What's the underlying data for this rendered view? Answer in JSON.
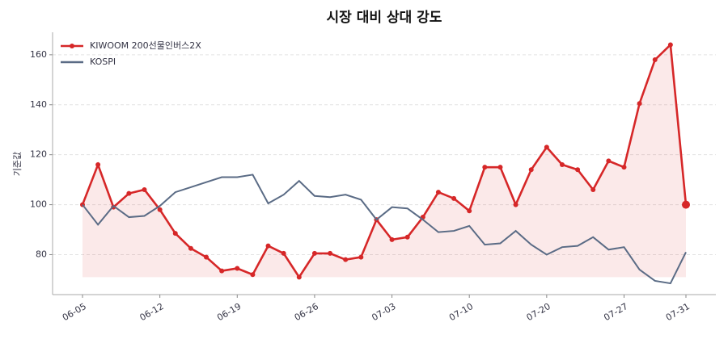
{
  "chart_data": {
    "type": "line",
    "title": "시장 대비 상대 강도",
    "y_label": "기준값",
    "categories": [
      "06-05",
      null,
      null,
      null,
      null,
      "06-12",
      null,
      null,
      null,
      null,
      "06-19",
      null,
      null,
      null,
      null,
      "06-26",
      null,
      null,
      null,
      null,
      "07-03",
      null,
      null,
      null,
      null,
      "07-10",
      null,
      null,
      null,
      null,
      "07-20",
      null,
      null,
      null,
      null,
      "07-27",
      null,
      null,
      null,
      "07-31"
    ],
    "ylim": [
      64,
      169
    ],
    "yticks": [
      80,
      100,
      120,
      140,
      160
    ],
    "grid": true,
    "legend": "upper left",
    "series": [
      {
        "name": "KIWOOM 200선물인버스2X",
        "color": "#d62728",
        "marker": true,
        "fill": true,
        "values": [
          100,
          116,
          99,
          104.5,
          106,
          98,
          88.5,
          82.5,
          79,
          73.5,
          74.5,
          72,
          83.5,
          80.5,
          71,
          80.5,
          80.5,
          78,
          79,
          94,
          86,
          87,
          95,
          105,
          102.5,
          97.5,
          115,
          115,
          100,
          114,
          123,
          116,
          114,
          106,
          117.5,
          115,
          140.5,
          158,
          164,
          100
        ]
      },
      {
        "name": "KOSPI",
        "color": "#5a6b85",
        "marker": false,
        "fill": false,
        "values": [
          100,
          92,
          99.5,
          95,
          95.5,
          99.5,
          105,
          107,
          109,
          111,
          111,
          112,
          100.5,
          104,
          109.5,
          103.5,
          103,
          104,
          102,
          94,
          99,
          98.5,
          94,
          89,
          89.5,
          91.5,
          84,
          84.5,
          89.5,
          84,
          80,
          83,
          83.5,
          87,
          82,
          83,
          74,
          69.5,
          68.5,
          81
        ]
      }
    ]
  }
}
